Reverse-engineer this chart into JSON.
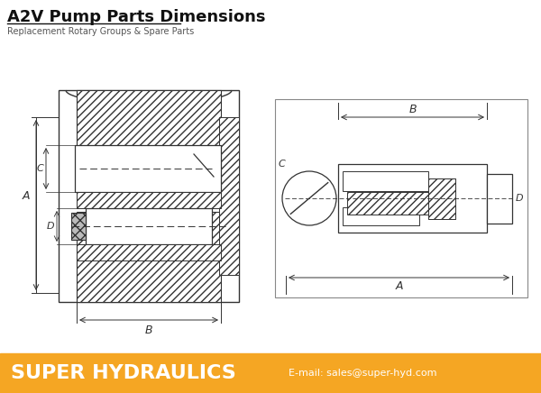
{
  "title": "A2V Pump Parts Dimensions",
  "subtitle": "Replacement Rotary Groups & Spare Parts",
  "footer_text": "SUPER HYDRAULICS",
  "footer_email": "E-mail: sales@super-hyd.com",
  "footer_bg": "#F5A623",
  "footer_text_color": "#FFFFFF",
  "bg_color": "#FFFFFF",
  "lc": "#333333",
  "title_color": "#111111",
  "subtitle_color": "#555555",
  "hatch_lw": 0.4
}
